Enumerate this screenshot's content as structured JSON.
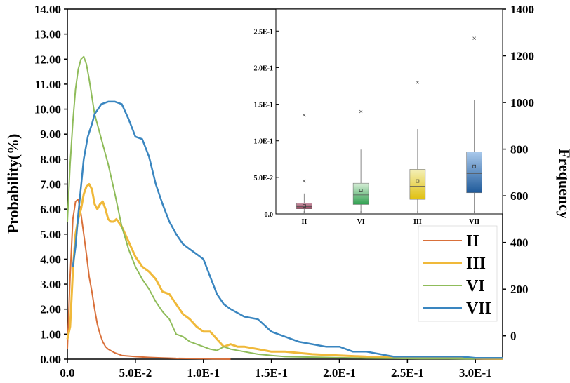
{
  "chart_data": [
    {
      "type": "line",
      "ylabel": "Probability(%)",
      "y2label": "Frequency",
      "xlim": [
        0,
        0.32
      ],
      "ylim": [
        0,
        14
      ],
      "y2lim": [
        -100,
        1400
      ],
      "x_ticks": [
        "0.0",
        "5.0E-2",
        "1.0E-1",
        "1.5E-1",
        "2.0E-1",
        "2.5E-1",
        "3.0E-1"
      ],
      "y_ticks": [
        "0.00",
        "1.00",
        "2.00",
        "3.00",
        "4.00",
        "5.00",
        "6.00",
        "7.00",
        "8.00",
        "9.00",
        "10.00",
        "11.00",
        "12.00",
        "13.00",
        "14.00"
      ],
      "y2_ticks": [
        "0",
        "200",
        "400",
        "600",
        "800",
        "1000",
        "1200",
        "1400"
      ],
      "legend_position": "right",
      "series": [
        {
          "name": "II",
          "color": "#d9703a",
          "stroke": 2,
          "x": [
            0,
            0.002,
            0.004,
            0.006,
            0.008,
            0.01,
            0.012,
            0.014,
            0.016,
            0.018,
            0.02,
            0.022,
            0.024,
            0.026,
            0.028,
            0.03,
            0.035,
            0.04,
            0.05,
            0.06,
            0.07,
            0.08,
            0.1,
            0.12
          ],
          "y": [
            0.4,
            3.3,
            5.6,
            6.3,
            6.4,
            5.8,
            5.0,
            4.2,
            3.3,
            2.7,
            2.0,
            1.4,
            1.0,
            0.7,
            0.5,
            0.4,
            0.25,
            0.15,
            0.1,
            0.07,
            0.05,
            0.03,
            0.02,
            0.0
          ]
        },
        {
          "name": "III",
          "color": "#f0b93a",
          "stroke": 3,
          "x": [
            0,
            0.002,
            0.004,
            0.006,
            0.008,
            0.01,
            0.012,
            0.014,
            0.016,
            0.018,
            0.02,
            0.022,
            0.024,
            0.026,
            0.028,
            0.03,
            0.032,
            0.034,
            0.036,
            0.04,
            0.045,
            0.05,
            0.055,
            0.06,
            0.065,
            0.07,
            0.075,
            0.08,
            0.085,
            0.09,
            0.095,
            0.1,
            0.105,
            0.11,
            0.115,
            0.12,
            0.125,
            0.13,
            0.14,
            0.15,
            0.16,
            0.17,
            0.18,
            0.2,
            0.22,
            0.24,
            0.26,
            0.28,
            0.3,
            0.32
          ],
          "y": [
            0.8,
            1.3,
            3.5,
            5.0,
            5.6,
            6.0,
            6.6,
            6.9,
            7.0,
            6.8,
            6.2,
            6.0,
            6.2,
            6.3,
            6.0,
            5.6,
            5.5,
            5.5,
            5.6,
            5.3,
            4.7,
            4.1,
            3.7,
            3.5,
            3.2,
            2.7,
            2.6,
            2.2,
            1.8,
            1.6,
            1.3,
            1.1,
            1.1,
            0.8,
            0.5,
            0.6,
            0.5,
            0.5,
            0.4,
            0.3,
            0.3,
            0.25,
            0.2,
            0.15,
            0.1,
            0.08,
            0.05,
            0.05,
            0.03,
            0.02
          ]
        },
        {
          "name": "VI",
          "color": "#8fbc5a",
          "stroke": 2,
          "x": [
            0,
            0.002,
            0.004,
            0.006,
            0.008,
            0.01,
            0.012,
            0.014,
            0.016,
            0.018,
            0.02,
            0.025,
            0.03,
            0.035,
            0.04,
            0.045,
            0.05,
            0.055,
            0.06,
            0.065,
            0.07,
            0.075,
            0.08,
            0.085,
            0.09,
            0.095,
            0.1,
            0.105,
            0.11,
            0.115,
            0.12,
            0.13,
            0.14,
            0.15,
            0.16,
            0.18,
            0.2,
            0.22,
            0.24,
            0.26,
            0.28,
            0.3
          ],
          "y": [
            5.5,
            7.8,
            9.5,
            10.8,
            11.6,
            12.0,
            12.1,
            11.8,
            11.2,
            10.5,
            9.8,
            8.8,
            7.8,
            6.6,
            5.3,
            4.4,
            3.7,
            3.2,
            2.8,
            2.3,
            1.9,
            1.6,
            1.0,
            0.9,
            0.7,
            0.6,
            0.5,
            0.4,
            0.35,
            0.5,
            0.4,
            0.3,
            0.2,
            0.15,
            0.1,
            0.08,
            0.06,
            0.04,
            0.03,
            0.02,
            0.02,
            0.01
          ]
        },
        {
          "name": "VII",
          "color": "#3a86c0",
          "stroke": 2.5,
          "x": [
            0.004,
            0.006,
            0.008,
            0.01,
            0.012,
            0.015,
            0.018,
            0.02,
            0.025,
            0.03,
            0.035,
            0.04,
            0.045,
            0.05,
            0.055,
            0.06,
            0.065,
            0.07,
            0.075,
            0.08,
            0.085,
            0.09,
            0.095,
            0.1,
            0.105,
            0.11,
            0.115,
            0.12,
            0.13,
            0.14,
            0.15,
            0.16,
            0.17,
            0.18,
            0.19,
            0.2,
            0.21,
            0.22,
            0.23,
            0.24,
            0.25,
            0.26,
            0.27,
            0.28,
            0.29,
            0.3,
            0.31,
            0.32
          ],
          "y": [
            3.7,
            4.5,
            5.8,
            6.9,
            8.0,
            8.9,
            9.4,
            9.8,
            10.2,
            10.3,
            10.3,
            10.2,
            9.6,
            8.9,
            8.8,
            8.1,
            7.0,
            6.2,
            5.5,
            5.0,
            4.6,
            4.4,
            4.2,
            4.0,
            3.3,
            2.6,
            2.2,
            2.0,
            1.7,
            1.6,
            1.1,
            0.9,
            0.7,
            0.6,
            0.5,
            0.5,
            0.3,
            0.3,
            0.2,
            0.1,
            0.1,
            0.1,
            0.1,
            0.1,
            0.1,
            0.05,
            0.05,
            0.05
          ]
        }
      ]
    },
    {
      "type": "box",
      "categories": [
        "II",
        "VI",
        "III",
        "VII"
      ],
      "y_ticks": [
        "0.0",
        "5.0E-2",
        "1.0E-1",
        "1.5E-1",
        "2.0E-1",
        "2.5E-1"
      ],
      "ylim": [
        0,
        0.28
      ],
      "boxes": [
        {
          "name": "II",
          "q1": 0.007,
          "median": 0.01,
          "q3": 0.015,
          "mean": 0.011,
          "wmin": 0.0,
          "wmax": 0.028,
          "outliers": [
            0.045,
            0.135
          ],
          "color_top": "#c89aaa",
          "color_bottom": "#9a3a56"
        },
        {
          "name": "VI",
          "q1": 0.013,
          "median": 0.026,
          "q3": 0.042,
          "mean": 0.032,
          "wmin": 0.0,
          "wmax": 0.088,
          "outliers": [
            0.14
          ],
          "color_top": "#d8eed8",
          "color_bottom": "#30a050"
        },
        {
          "name": "III",
          "q1": 0.02,
          "median": 0.038,
          "q3": 0.061,
          "mean": 0.045,
          "wmin": 0.0,
          "wmax": 0.116,
          "outliers": [
            0.18
          ],
          "color_top": "#f4f0b8",
          "color_bottom": "#e0c010"
        },
        {
          "name": "VII",
          "q1": 0.029,
          "median": 0.055,
          "q3": 0.085,
          "mean": 0.065,
          "wmin": 0.0,
          "wmax": 0.156,
          "outliers": [
            0.24
          ],
          "color_top": "#a9c9ec",
          "color_bottom": "#1f5a9a"
        }
      ]
    }
  ]
}
